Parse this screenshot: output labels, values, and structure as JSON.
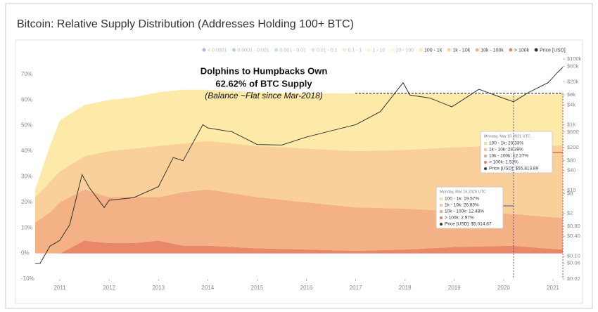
{
  "chart_data": {
    "type": "area",
    "title": "Bitcoin: Relative Supply Distribution (Addresses Holding 100+ BTC)",
    "x": [
      2010.5,
      2010.8,
      2011,
      2011.5,
      2012,
      2012.5,
      2013,
      2013.5,
      2014,
      2015,
      2016,
      2017,
      2018,
      2019,
      2020.2,
      2021,
      2021.2
    ],
    "xlim": [
      2010.5,
      2021.2
    ],
    "xticks": [
      2011,
      2012,
      2013,
      2014,
      2015,
      2016,
      2017,
      2018,
      2019,
      2020,
      2021
    ],
    "ylim": [
      -10,
      76
    ],
    "yticks": [
      {
        "value": -10,
        "label": "-10%"
      },
      {
        "value": 0,
        "label": "0%"
      },
      {
        "value": 10,
        "label": "10%"
      },
      {
        "value": 20,
        "label": "20%"
      },
      {
        "value": 30,
        "label": "30%"
      },
      {
        "value": 40,
        "label": "40%"
      },
      {
        "value": 50,
        "label": "50%"
      },
      {
        "value": 60,
        "label": "60%"
      },
      {
        "value": 70,
        "label": "70%"
      }
    ],
    "y2lim": [
      0.02,
      100000
    ],
    "y2log": true,
    "y2ticks": [
      {
        "value": 100000,
        "label": "$100k"
      },
      {
        "value": 60000,
        "label": "$60k"
      },
      {
        "value": 20000,
        "label": "$20k"
      },
      {
        "value": 8000,
        "label": "$8k"
      },
      {
        "value": 4000,
        "label": "$4k"
      },
      {
        "value": 1000,
        "label": "$1k"
      },
      {
        "value": 600,
        "label": "$600"
      },
      {
        "value": 200,
        "label": "$200"
      },
      {
        "value": 80,
        "label": "$80"
      },
      {
        "value": 40,
        "label": "$40"
      },
      {
        "value": 10,
        "label": "$10"
      },
      {
        "value": 8,
        "label": "$8"
      },
      {
        "value": 2,
        "label": "$2"
      },
      {
        "value": 0.8,
        "label": "$0.80"
      },
      {
        "value": 0.4,
        "label": "$0.40"
      },
      {
        "value": 0.1,
        "label": "$0.10"
      },
      {
        "value": 0.06,
        "label": "$0.06"
      },
      {
        "value": 0.02,
        "label": "$0.02"
      }
    ],
    "grid": false,
    "legend_inactive": [
      {
        "name": "< 0.0001",
        "color": "#3b5fb0"
      },
      {
        "name": "0.0001 - 0.001",
        "color": "#5a8fd0"
      },
      {
        "name": "0.001 - 0.01",
        "color": "#7fc0d0"
      },
      {
        "name": "0.01 - 0.1",
        "color": "#9fd6a8"
      },
      {
        "name": "0.1 - 1",
        "color": "#c5e3a0"
      },
      {
        "name": "1 - 10",
        "color": "#e4eea0"
      },
      {
        "name": "10 - 100",
        "color": "#f7f0b0"
      }
    ],
    "series": [
      {
        "name": "100 - 1k",
        "color": "#fde9a8",
        "values": [
          3,
          14,
          20,
          20,
          20,
          20,
          21,
          21,
          20,
          21,
          21.5,
          22.5,
          22,
          21,
          19.57,
          20.2,
          20.33
        ]
      },
      {
        "name": "1k - 10k",
        "color": "#f9d09a",
        "values": [
          10,
          12,
          12,
          13,
          18,
          19,
          20,
          19,
          19,
          20,
          21,
          22,
          23,
          25,
          26.83,
          28,
          28.39
        ]
      },
      {
        "name": "10k - 100k",
        "color": "#f3b185",
        "values": [
          12,
          16,
          20,
          20,
          18,
          18,
          17,
          21,
          22,
          20,
          18.5,
          17,
          16,
          14,
          12.48,
          12.4,
          12.37
        ]
      },
      {
        "name": "> 100k",
        "color": "#e9876b",
        "values": [
          0,
          0,
          0,
          5,
          4,
          4,
          5,
          3,
          3,
          2,
          1.5,
          1,
          1.5,
          2.5,
          2.97,
          1.7,
          1.53
        ]
      },
      {
        "name": "Price [USD]",
        "color": "#333333",
        "axis": "y2",
        "type": "line",
        "x": [
          2010.5,
          2010.6,
          2010.8,
          2011,
          2011.2,
          2011.45,
          2011.6,
          2011.9,
          2012,
          2012.5,
          2013,
          2013.3,
          2013.5,
          2013.9,
          2014,
          2014.5,
          2015,
          2015.5,
          2016,
          2016.5,
          2017,
          2017.5,
          2017.96,
          2018.1,
          2018.5,
          2018.95,
          2019.5,
          2019.9,
          2020.2,
          2020.5,
          2020.9,
          2021.1,
          2021.2
        ],
        "values": [
          0.06,
          0.06,
          0.2,
          0.3,
          0.9,
          30,
          12,
          3,
          5,
          6,
          13,
          100,
          80,
          1000,
          800,
          600,
          250,
          240,
          420,
          650,
          1000,
          2500,
          19000,
          8000,
          6500,
          3500,
          12000,
          7200,
          5000,
          9500,
          19000,
          40000,
          56000
        ]
      }
    ],
    "annotations": {
      "headline": [
        "Dolphins to Humpbacks Own",
        "62.62% of BTC Supply"
      ],
      "subline": "(Balance ~Flat since Mar-2018)",
      "level": 62.62
    },
    "tooltips": [
      {
        "x": 2021.2,
        "date": "Monday, Mar 15 2021 UTC",
        "lines": [
          "100 - 1k: 20.33%",
          "1k - 10k: 28.39%",
          "10k - 100k: 12.37%",
          "> 100k: 1.53%",
          "Price [USD]: $55,813.89"
        ]
      },
      {
        "x": 2020.2,
        "date": "Monday, Mar 16 2020 UTC",
        "lines": [
          "100 - 1k: 19.57%",
          "1k - 10k: 26.83%",
          "10k - 100k: 12.48%",
          "> 100k: 2.97%",
          "Price [USD]: $5,014.87"
        ]
      }
    ],
    "watermark": "glassnode"
  }
}
